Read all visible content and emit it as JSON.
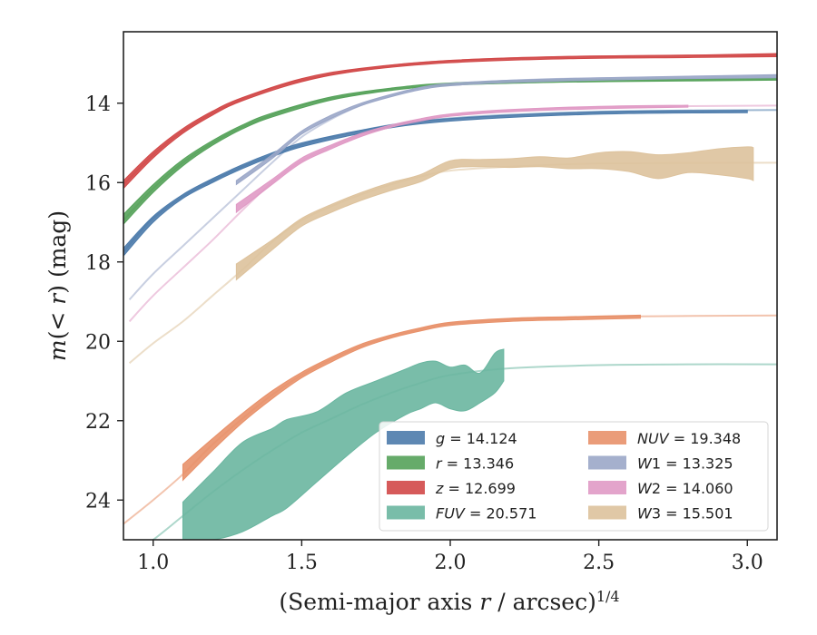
{
  "chart_data": {
    "type": "line",
    "xlabel": "(Semi-major axis r / arcsec)^{1/4}",
    "ylabel": "m(<r) (mag)",
    "xlim": [
      0.9,
      3.1
    ],
    "ylim": [
      25.0,
      12.2
    ],
    "y_inverted": true,
    "xticks": [
      1.0,
      1.5,
      2.0,
      2.5,
      3.0
    ],
    "xtick_labels": [
      "1.0",
      "1.5",
      "2.0",
      "2.5",
      "3.0"
    ],
    "yticks": [
      14,
      16,
      18,
      20,
      22,
      24
    ],
    "ytick_labels": [
      "14",
      "16",
      "18",
      "20",
      "22",
      "24"
    ],
    "grid": false,
    "legend_placement": "lower-right",
    "series": [
      {
        "name": "g",
        "legend_value": "14.124",
        "color": "#4c7bab",
        "model": [
          [
            0.9,
            17.75
          ],
          [
            0.95,
            17.3
          ],
          [
            1.0,
            16.9
          ],
          [
            1.1,
            16.35
          ],
          [
            1.2,
            15.95
          ],
          [
            1.3,
            15.6
          ],
          [
            1.4,
            15.3
          ],
          [
            1.5,
            15.05
          ],
          [
            1.6,
            14.85
          ],
          [
            1.8,
            14.55
          ],
          [
            2.0,
            14.38
          ],
          [
            2.3,
            14.26
          ],
          [
            2.6,
            14.2
          ],
          [
            3.1,
            14.17
          ]
        ],
        "data": [
          [
            0.9,
            17.65,
            17.85
          ],
          [
            1.0,
            16.85,
            17.0
          ],
          [
            1.1,
            16.3,
            16.4
          ],
          [
            1.2,
            15.9,
            16.0
          ],
          [
            1.3,
            15.55,
            15.65
          ],
          [
            1.4,
            15.25,
            15.35
          ],
          [
            1.5,
            15.0,
            15.1
          ],
          [
            1.7,
            14.68,
            14.76
          ],
          [
            1.9,
            14.45,
            14.52
          ],
          [
            2.2,
            14.3,
            14.36
          ],
          [
            2.6,
            14.2,
            14.26
          ],
          [
            3.0,
            14.18,
            14.24
          ]
        ]
      },
      {
        "name": "r",
        "legend_value": "13.346",
        "color": "#55a25a",
        "model": [
          [
            0.9,
            16.95
          ],
          [
            1.0,
            16.15
          ],
          [
            1.1,
            15.5
          ],
          [
            1.2,
            15.0
          ],
          [
            1.3,
            14.6
          ],
          [
            1.4,
            14.3
          ],
          [
            1.5,
            14.05
          ],
          [
            1.6,
            13.88
          ],
          [
            1.8,
            13.65
          ],
          [
            2.0,
            13.52
          ],
          [
            2.3,
            13.45
          ],
          [
            2.6,
            13.42
          ],
          [
            3.1,
            13.4
          ]
        ],
        "data": [
          [
            0.9,
            16.8,
            17.05
          ],
          [
            1.0,
            16.05,
            16.25
          ],
          [
            1.1,
            15.42,
            15.58
          ],
          [
            1.2,
            14.94,
            15.06
          ],
          [
            1.3,
            14.55,
            14.65
          ],
          [
            1.4,
            14.25,
            14.35
          ],
          [
            1.6,
            13.84,
            13.92
          ],
          [
            1.8,
            13.62,
            13.68
          ],
          [
            2.0,
            13.49,
            13.55
          ],
          [
            2.4,
            13.41,
            13.47
          ],
          [
            2.8,
            13.38,
            13.44
          ],
          [
            3.1,
            13.36,
            13.42
          ]
        ]
      },
      {
        "name": "z",
        "legend_value": "12.699",
        "color": "#d14848",
        "model": [
          [
            0.9,
            16.05
          ],
          [
            1.0,
            15.3
          ],
          [
            1.1,
            14.7
          ],
          [
            1.2,
            14.25
          ],
          [
            1.3,
            13.9
          ],
          [
            1.4,
            13.62
          ],
          [
            1.5,
            13.42
          ],
          [
            1.7,
            13.15
          ],
          [
            1.9,
            12.98
          ],
          [
            2.2,
            12.87
          ],
          [
            2.6,
            12.81
          ],
          [
            3.1,
            12.79
          ]
        ],
        "data": [
          [
            0.9,
            15.95,
            16.15
          ],
          [
            1.0,
            15.22,
            15.38
          ],
          [
            1.1,
            14.64,
            14.76
          ],
          [
            1.2,
            14.2,
            14.3
          ],
          [
            1.3,
            13.86,
            13.94
          ],
          [
            1.5,
            13.38,
            13.46
          ],
          [
            1.7,
            13.12,
            13.18
          ],
          [
            2.0,
            12.92,
            12.98
          ],
          [
            2.4,
            12.82,
            12.88
          ],
          [
            2.8,
            12.79,
            12.85
          ],
          [
            3.1,
            12.75,
            12.83
          ]
        ]
      },
      {
        "name": "FUV",
        "legend_value": "20.571",
        "color": "#6ab6a0",
        "model": [
          [
            0.9,
            25.5
          ],
          [
            1.0,
            25.0
          ],
          [
            1.1,
            24.4
          ],
          [
            1.2,
            23.8
          ],
          [
            1.3,
            23.25
          ],
          [
            1.4,
            22.75
          ],
          [
            1.5,
            22.3
          ],
          [
            1.6,
            21.95
          ],
          [
            1.7,
            21.6
          ],
          [
            1.8,
            21.3
          ],
          [
            1.9,
            21.05
          ],
          [
            2.0,
            20.85
          ],
          [
            2.2,
            20.68
          ],
          [
            2.5,
            20.6
          ],
          [
            2.8,
            20.58
          ],
          [
            3.1,
            20.58
          ]
        ],
        "data": [
          [
            1.1,
            24.05,
            25.0
          ],
          [
            1.2,
            23.3,
            25.0
          ],
          [
            1.3,
            22.55,
            24.8
          ],
          [
            1.4,
            22.2,
            24.4
          ],
          [
            1.45,
            21.97,
            24.2
          ],
          [
            1.55,
            21.78,
            23.55
          ],
          [
            1.65,
            21.3,
            22.9
          ],
          [
            1.75,
            21.0,
            22.3
          ],
          [
            1.85,
            20.7,
            21.85
          ],
          [
            1.9,
            20.55,
            21.7
          ],
          [
            1.95,
            20.5,
            21.55
          ],
          [
            2.0,
            20.65,
            21.7
          ],
          [
            2.05,
            20.6,
            21.75
          ],
          [
            2.1,
            20.8,
            21.55
          ],
          [
            2.15,
            20.3,
            21.3
          ],
          [
            2.18,
            20.2,
            21.0
          ]
        ]
      },
      {
        "name": "NUV",
        "legend_value": "19.348",
        "color": "#e8916a",
        "model": [
          [
            0.9,
            24.6
          ],
          [
            1.0,
            24.0
          ],
          [
            1.1,
            23.35
          ],
          [
            1.2,
            22.6
          ],
          [
            1.3,
            21.95
          ],
          [
            1.4,
            21.35
          ],
          [
            1.5,
            20.85
          ],
          [
            1.6,
            20.45
          ],
          [
            1.7,
            20.12
          ],
          [
            1.8,
            19.88
          ],
          [
            1.9,
            19.7
          ],
          [
            2.0,
            19.56
          ],
          [
            2.2,
            19.45
          ],
          [
            2.5,
            19.38
          ],
          [
            3.1,
            19.35
          ]
        ],
        "data": [
          [
            1.1,
            23.1,
            23.5
          ],
          [
            1.2,
            22.45,
            22.75
          ],
          [
            1.3,
            21.82,
            22.05
          ],
          [
            1.4,
            21.25,
            21.45
          ],
          [
            1.5,
            20.78,
            20.92
          ],
          [
            1.6,
            20.4,
            20.52
          ],
          [
            1.7,
            20.07,
            20.17
          ],
          [
            1.8,
            19.84,
            19.92
          ],
          [
            1.9,
            19.66,
            19.74
          ],
          [
            2.0,
            19.52,
            19.6
          ],
          [
            2.2,
            19.42,
            19.5
          ],
          [
            2.4,
            19.38,
            19.46
          ],
          [
            2.64,
            19.34,
            19.42
          ]
        ]
      },
      {
        "name": "W1",
        "legend_value": "13.325",
        "color": "#9ba7c8",
        "model": [
          [
            0.92,
            18.95
          ],
          [
            1.0,
            18.3
          ],
          [
            1.1,
            17.6
          ],
          [
            1.2,
            16.9
          ],
          [
            1.3,
            16.2
          ],
          [
            1.4,
            15.5
          ],
          [
            1.5,
            14.85
          ],
          [
            1.6,
            14.4
          ],
          [
            1.7,
            14.05
          ],
          [
            1.8,
            13.8
          ],
          [
            1.9,
            13.62
          ],
          [
            2.0,
            13.52
          ],
          [
            2.3,
            13.4
          ],
          [
            2.6,
            13.36
          ],
          [
            3.1,
            13.31
          ]
        ],
        "data": [
          [
            1.28,
            15.95,
            16.05
          ],
          [
            1.4,
            15.3,
            15.4
          ],
          [
            1.5,
            14.7,
            14.78
          ],
          [
            1.6,
            14.3,
            14.38
          ],
          [
            1.7,
            14.0,
            14.06
          ],
          [
            1.8,
            13.78,
            13.84
          ],
          [
            1.9,
            13.6,
            13.66
          ],
          [
            2.0,
            13.5,
            13.56
          ],
          [
            2.2,
            13.42,
            13.48
          ],
          [
            2.5,
            13.36,
            13.42
          ],
          [
            2.8,
            13.32,
            13.38
          ],
          [
            3.1,
            13.28,
            13.36
          ]
        ]
      },
      {
        "name": "W2",
        "legend_value": "14.060",
        "color": "#e09ac5",
        "model": [
          [
            0.92,
            19.5
          ],
          [
            1.0,
            18.85
          ],
          [
            1.1,
            18.15
          ],
          [
            1.2,
            17.45
          ],
          [
            1.3,
            16.7
          ],
          [
            1.4,
            16.0
          ],
          [
            1.5,
            15.45
          ],
          [
            1.6,
            15.1
          ],
          [
            1.7,
            14.8
          ],
          [
            1.8,
            14.58
          ],
          [
            1.9,
            14.42
          ],
          [
            2.0,
            14.3
          ],
          [
            2.2,
            14.18
          ],
          [
            2.5,
            14.1
          ],
          [
            3.1,
            14.06
          ]
        ],
        "data": [
          [
            1.28,
            16.55,
            16.75
          ],
          [
            1.4,
            15.92,
            16.05
          ],
          [
            1.5,
            15.38,
            15.5
          ],
          [
            1.6,
            15.05,
            15.15
          ],
          [
            1.7,
            14.76,
            14.84
          ],
          [
            1.8,
            14.55,
            14.61
          ],
          [
            1.9,
            14.39,
            14.45
          ],
          [
            2.0,
            14.27,
            14.33
          ],
          [
            2.2,
            14.16,
            14.22
          ],
          [
            2.5,
            14.08,
            14.14
          ],
          [
            2.8,
            14.05,
            14.1
          ]
        ]
      },
      {
        "name": "W3",
        "legend_value": "15.501",
        "color": "#ddc29c",
        "model": [
          [
            0.92,
            20.55
          ],
          [
            1.0,
            20.05
          ],
          [
            1.1,
            19.5
          ],
          [
            1.2,
            18.85
          ],
          [
            1.3,
            18.2
          ],
          [
            1.4,
            17.5
          ],
          [
            1.5,
            16.95
          ],
          [
            1.6,
            16.6
          ],
          [
            1.7,
            16.3
          ],
          [
            1.8,
            16.05
          ],
          [
            1.9,
            15.85
          ],
          [
            2.0,
            15.7
          ],
          [
            2.2,
            15.6
          ],
          [
            2.5,
            15.52
          ],
          [
            3.1,
            15.5
          ]
        ],
        "data": [
          [
            1.28,
            18.05,
            18.45
          ],
          [
            1.4,
            17.45,
            17.7
          ],
          [
            1.5,
            16.9,
            17.1
          ],
          [
            1.6,
            16.55,
            16.75
          ],
          [
            1.7,
            16.25,
            16.45
          ],
          [
            1.8,
            16.0,
            16.2
          ],
          [
            1.9,
            15.8,
            15.98
          ],
          [
            2.0,
            15.45,
            15.65
          ],
          [
            2.1,
            15.42,
            15.6
          ],
          [
            2.2,
            15.4,
            15.62
          ],
          [
            2.3,
            15.35,
            15.6
          ],
          [
            2.4,
            15.38,
            15.65
          ],
          [
            2.5,
            15.25,
            15.65
          ],
          [
            2.6,
            15.22,
            15.72
          ],
          [
            2.7,
            15.3,
            15.9
          ],
          [
            2.8,
            15.25,
            15.75
          ],
          [
            2.9,
            15.15,
            15.8
          ],
          [
            3.0,
            15.1,
            15.9
          ],
          [
            3.02,
            15.12,
            15.95
          ]
        ]
      }
    ]
  }
}
